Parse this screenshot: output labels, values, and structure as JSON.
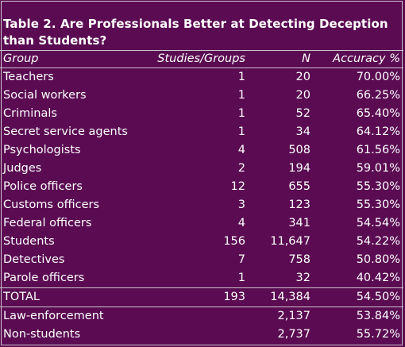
{
  "title": "Table 2. Are Professionals Better at Detecting Deception than Students?",
  "columns": [
    "Group",
    "Studies/Groups",
    "N",
    "Accuracy %"
  ],
  "rows": [
    {
      "group": "Teachers",
      "studies": "1",
      "n": "20",
      "accuracy": "70.00%"
    },
    {
      "group": "Social workers",
      "studies": "1",
      "n": "20",
      "accuracy": "66.25%"
    },
    {
      "group": "Criminals",
      "studies": "1",
      "n": "52",
      "accuracy": "65.40%"
    },
    {
      "group": "Secret service agents",
      "studies": "1",
      "n": "34",
      "accuracy": "64.12%"
    },
    {
      "group": "Psychologists",
      "studies": "4",
      "n": "508",
      "accuracy": "61.56%"
    },
    {
      "group": "Judges",
      "studies": "2",
      "n": "194",
      "accuracy": "59.01%"
    },
    {
      "group": "Police officers",
      "studies": "12",
      "n": "655",
      "accuracy": "55.30%"
    },
    {
      "group": "Customs officers",
      "studies": "3",
      "n": "123",
      "accuracy": "55.30%"
    },
    {
      "group": "Federal officers",
      "studies": "4",
      "n": "341",
      "accuracy": "54.54%"
    },
    {
      "group": "Students",
      "studies": "156",
      "n": "11,647",
      "accuracy": "54.22%"
    },
    {
      "group": "Detectives",
      "studies": "7",
      "n": "758",
      "accuracy": "50.80%"
    },
    {
      "group": "Parole officers",
      "studies": "1",
      "n": "32",
      "accuracy": "40.42%"
    }
  ],
  "total": {
    "group": "TOTAL",
    "studies": "193",
    "n": "14,384",
    "accuracy": "54.50%"
  },
  "summary": [
    {
      "group": "Law-enforcement",
      "studies": "",
      "n": "2,137",
      "accuracy": "53.84%"
    },
    {
      "group": "Non-students",
      "studies": "",
      "n": "2,737",
      "accuracy": "55.72%"
    }
  ],
  "colors": {
    "background": "#5a0b52",
    "text": "#ffffff",
    "rule": "#cfc4cf"
  }
}
